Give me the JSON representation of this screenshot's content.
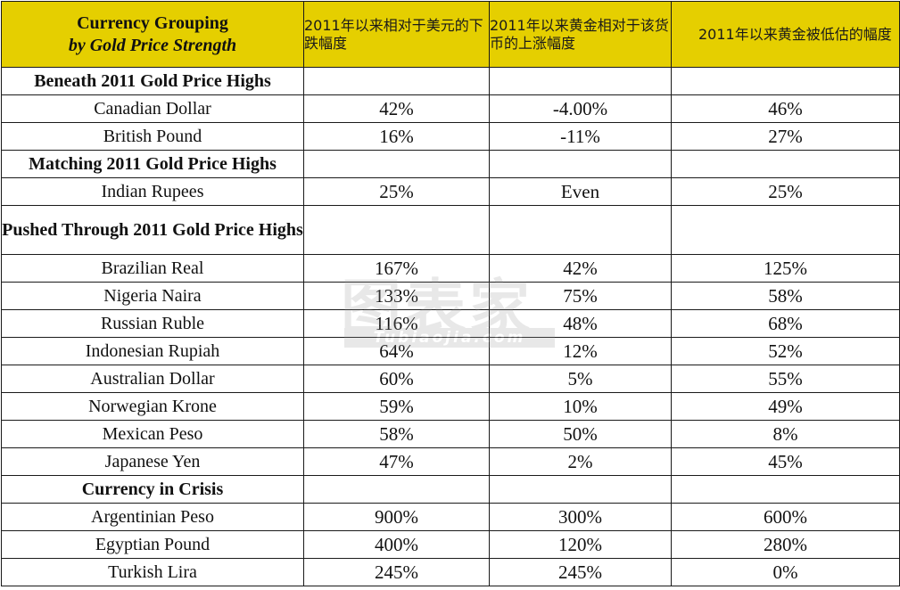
{
  "header": {
    "col1_line1": "Currency Grouping",
    "col1_line2": "by Gold Price Strength",
    "col2": "2011年以来相对于美元的下跌幅度",
    "col3": "2011年以来黄金相对于该货币的上涨幅度",
    "col4": "2011年以来黄金被低估的幅度"
  },
  "groups": [
    {
      "title": "Beneath 2011 Gold Price Highs",
      "rows": [
        {
          "currency": "Canadian Dollar",
          "decline": "42%",
          "gold_rise": "-4.00%",
          "undervalued": "46%"
        },
        {
          "currency": "British Pound",
          "decline": "16%",
          "gold_rise": "-11%",
          "undervalued": "27%"
        }
      ]
    },
    {
      "title": "Matching 2011 Gold Price Highs",
      "rows": [
        {
          "currency": "Indian Rupees",
          "decline": "25%",
          "gold_rise": "Even",
          "undervalued": "25%"
        }
      ]
    },
    {
      "title": "Pushed Through 2011 Gold Price Highs",
      "rows": [
        {
          "currency": "Brazilian Real",
          "decline": "167%",
          "gold_rise": "42%",
          "undervalued": "125%"
        },
        {
          "currency": "Nigeria Naira",
          "decline": "133%",
          "gold_rise": "75%",
          "undervalued": "58%"
        },
        {
          "currency": "Russian Ruble",
          "decline": "116%",
          "gold_rise": "48%",
          "undervalued": "68%"
        },
        {
          "currency": "Indonesian Rupiah",
          "decline": "64%",
          "gold_rise": "12%",
          "undervalued": "52%"
        },
        {
          "currency": "Australian Dollar",
          "decline": "60%",
          "gold_rise": "5%",
          "undervalued": "55%"
        },
        {
          "currency": "Norwegian Krone",
          "decline": "59%",
          "gold_rise": "10%",
          "undervalued": "49%"
        },
        {
          "currency": "Mexican Peso",
          "decline": "58%",
          "gold_rise": "50%",
          "undervalued": "8%"
        },
        {
          "currency": "Japanese Yen",
          "decline": "47%",
          "gold_rise": "2%",
          "undervalued": "45%"
        }
      ]
    },
    {
      "title": "Currency in Crisis",
      "rows": [
        {
          "currency": "Argentinian Peso",
          "decline": "900%",
          "gold_rise": "300%",
          "undervalued": "600%"
        },
        {
          "currency": "Egyptian Pound",
          "decline": "400%",
          "gold_rise": "120%",
          "undervalued": "280%"
        },
        {
          "currency": "Turkish Lira",
          "decline": "245%",
          "gold_rise": "245%",
          "undervalued": "0%"
        }
      ]
    }
  ],
  "watermark": {
    "text_cn": "图表家",
    "text_en": "Tubiaojia.com"
  },
  "colors": {
    "header_bg": "#e5cf00",
    "border": "#1a1a1a"
  }
}
